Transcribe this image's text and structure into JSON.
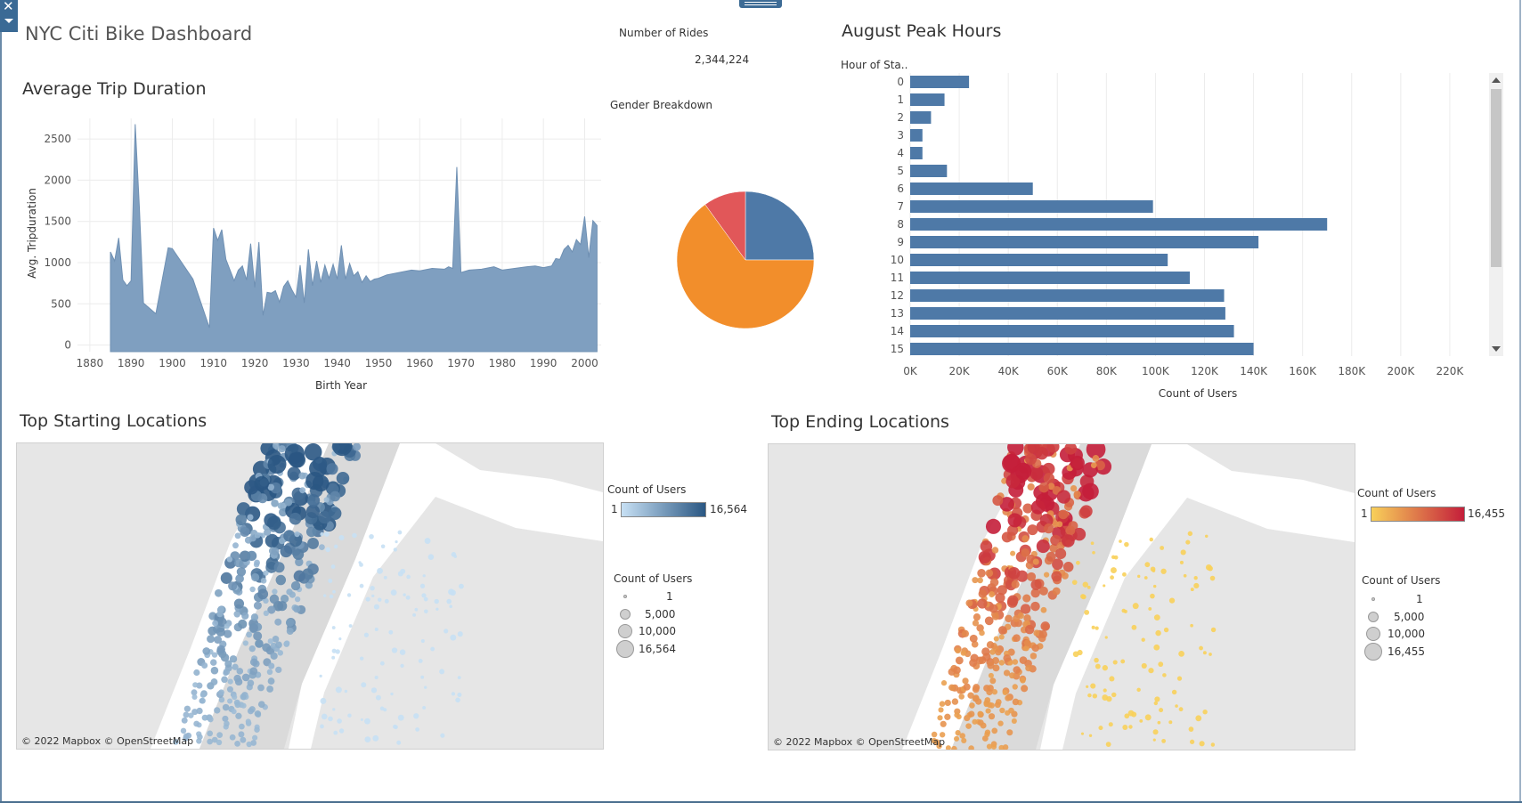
{
  "dashboard": {
    "title": "NYC Citi Bike Dashboard",
    "close_icon": "close-icon",
    "menu_icon": "chevron-down-icon"
  },
  "kpi": {
    "label": "Number of Rides",
    "value": "2,344,224"
  },
  "gender": {
    "title": "Gender Breakdown"
  },
  "peak": {
    "title": "August Peak Hours",
    "row_header": "Hour of Sta.."
  },
  "trip": {
    "title": "Average Trip Duration"
  },
  "start_map": {
    "title": "Top Starting Locations",
    "credit": "© 2022 Mapbox © OpenStreetMap",
    "color_legend_title": "Count of Users",
    "color_min": "1",
    "color_max": "16,564",
    "size_legend_title": "Count of Users",
    "size_labels": [
      "1",
      "5,000",
      "10,000",
      "16,564"
    ],
    "color_low": "#c7e0f4",
    "color_high": "#2a5783"
  },
  "end_map": {
    "title": "Top Ending Locations",
    "credit": "© 2022 Mapbox © OpenStreetMap",
    "color_legend_title": "Count of Users",
    "color_min": "1",
    "color_max": "16,455",
    "size_legend_title": "Count of Users",
    "size_labels": [
      "1",
      "5,000",
      "10,000",
      "16,455"
    ],
    "color_low": "#f8d05a",
    "color_high": "#c41e3a"
  },
  "chart_data": [
    {
      "type": "area",
      "title": "Average Trip Duration",
      "xlabel": "Birth Year",
      "ylabel": "Avg. Tripduration",
      "xlim": [
        1877,
        2004
      ],
      "ylim": [
        -80,
        2750
      ],
      "x_ticks": [
        1880,
        1890,
        1900,
        1910,
        1920,
        1930,
        1940,
        1950,
        1960,
        1970,
        1980,
        1990,
        2000
      ],
      "y_ticks": [
        0,
        500,
        1000,
        1500,
        2000,
        2500
      ],
      "color": "#7f9fc0",
      "x": [
        1885,
        1886,
        1887,
        1888,
        1889,
        1890,
        1891,
        1892,
        1893,
        1896,
        1899,
        1900,
        1905,
        1909,
        1910,
        1911,
        1912,
        1913,
        1915,
        1916,
        1917,
        1918,
        1919,
        1920,
        1921,
        1922,
        1923,
        1924,
        1925,
        1926,
        1927,
        1928,
        1929,
        1930,
        1931,
        1932,
        1933,
        1934,
        1935,
        1936,
        1937,
        1938,
        1939,
        1940,
        1941,
        1942,
        1943,
        1944,
        1945,
        1946,
        1947,
        1948,
        1949,
        1950,
        1952,
        1955,
        1958,
        1960,
        1963,
        1966,
        1967,
        1968,
        1969,
        1970,
        1972,
        1975,
        1978,
        1980,
        1983,
        1986,
        1988,
        1990,
        1992,
        1993,
        1994,
        1995,
        1996,
        1997,
        1998,
        1999,
        2000,
        2001,
        2002,
        2003
      ],
      "values": [
        1130,
        1020,
        1300,
        790,
        720,
        780,
        2680,
        1680,
        510,
        380,
        1180,
        1170,
        800,
        210,
        1420,
        1270,
        1400,
        1040,
        780,
        910,
        960,
        790,
        1230,
        700,
        1250,
        360,
        640,
        630,
        660,
        520,
        710,
        780,
        670,
        580,
        970,
        510,
        1160,
        720,
        1020,
        760,
        970,
        810,
        980,
        800,
        1210,
        800,
        990,
        840,
        890,
        760,
        840,
        770,
        800,
        810,
        850,
        880,
        910,
        900,
        930,
        920,
        950,
        930,
        2160,
        880,
        910,
        920,
        950,
        910,
        930,
        950,
        960,
        940,
        960,
        1050,
        1040,
        1160,
        1210,
        1130,
        1280,
        1220,
        1560,
        1060,
        1510,
        1450
      ]
    },
    {
      "type": "pie",
      "title": "Gender Breakdown",
      "values": [
        0.25,
        0.65,
        0.1
      ],
      "colors": [
        "#4e79a7",
        "#f28e2b",
        "#e15759"
      ]
    },
    {
      "type": "bar",
      "title": "August Peak Hours",
      "xlabel": "Count of Users",
      "ylabel": "Hour of Sta..",
      "xlim": [
        0,
        240000
      ],
      "x_ticks": [
        0,
        20000,
        40000,
        60000,
        80000,
        100000,
        120000,
        140000,
        160000,
        180000,
        200000,
        220000
      ],
      "x_tick_labels": [
        "0K",
        "20K",
        "40K",
        "60K",
        "80K",
        "100K",
        "120K",
        "140K",
        "160K",
        "180K",
        "200K",
        "220K"
      ],
      "categories": [
        "0",
        "1",
        "2",
        "3",
        "4",
        "5",
        "6",
        "7",
        "8",
        "9",
        "10",
        "11",
        "12",
        "13",
        "14",
        "15"
      ],
      "values": [
        24000,
        14000,
        8500,
        5000,
        5000,
        15000,
        50000,
        99000,
        170000,
        142000,
        105000,
        114000,
        128000,
        128500,
        132000,
        140000
      ],
      "color": "#4e79a7"
    }
  ]
}
